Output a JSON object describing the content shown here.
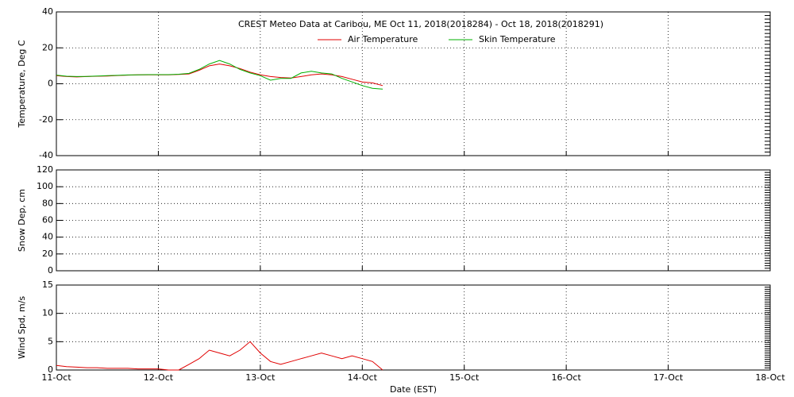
{
  "chart_data": [
    {
      "type": "line",
      "title": "CREST Meteo Data at Caribou, ME   Oct 11, 2018(2018284) - Oct 18, 2018(2018291)",
      "y_label": "Temperature, Deg C",
      "x": [
        0,
        0.1,
        0.2,
        0.3,
        0.4,
        0.5,
        0.6,
        0.7,
        0.8,
        0.9,
        1.0,
        1.1,
        1.2,
        1.3,
        1.4,
        1.5,
        1.6,
        1.7,
        1.8,
        1.9,
        2.0,
        2.1,
        2.2,
        2.3,
        2.4,
        2.5,
        2.6,
        2.7,
        2.8,
        2.9,
        3.0,
        3.1,
        3.2
      ],
      "series": [
        {
          "name": "Air Temperature",
          "color": "#e00000",
          "values": [
            4.5,
            4,
            3.8,
            4,
            4.2,
            4.3,
            4.6,
            4.8,
            5,
            5,
            5,
            5,
            5.2,
            5.5,
            7.5,
            10,
            11,
            10,
            8.5,
            6.5,
            5,
            4,
            3.5,
            3.2,
            4,
            5,
            5.5,
            5,
            4,
            2.5,
            1,
            0.5,
            -1
          ]
        },
        {
          "name": "Skin Temperature",
          "color": "#00b000",
          "values": [
            4.8,
            4.2,
            4,
            4.1,
            4.3,
            4.5,
            4.7,
            4.9,
            5,
            5.1,
            5.1,
            5.1,
            5.3,
            5.8,
            8,
            11,
            13,
            11,
            8,
            6,
            4.5,
            2,
            3,
            3,
            6,
            7,
            6,
            5.5,
            3,
            1,
            -1,
            -2.5,
            -3
          ]
        }
      ],
      "ylim": [
        -40,
        40
      ],
      "yticks": [
        -40,
        -20,
        0,
        20,
        40
      ],
      "grid": true,
      "legend": "top"
    },
    {
      "type": "line",
      "y_label": "Snow Dep, cm",
      "series": [],
      "ylim": [
        0,
        120
      ],
      "yticks": [
        0,
        20,
        40,
        60,
        80,
        100,
        120
      ],
      "grid": true
    },
    {
      "type": "line",
      "y_label": "Wind Spd, m/s",
      "x_label": "Date (EST)",
      "x": [
        0,
        0.1,
        0.2,
        0.3,
        0.4,
        0.5,
        0.6,
        0.7,
        0.8,
        0.9,
        1.0,
        1.1,
        1.2,
        1.3,
        1.4,
        1.5,
        1.6,
        1.7,
        1.8,
        1.9,
        2.0,
        2.1,
        2.2,
        2.3,
        2.4,
        2.5,
        2.6,
        2.7,
        2.8,
        2.9,
        3.0,
        3.1,
        3.2
      ],
      "series": [
        {
          "name": "Wind Speed",
          "color": "#e00000",
          "values": [
            0.8,
            0.6,
            0.5,
            0.4,
            0.4,
            0.3,
            0.3,
            0.3,
            0.2,
            0.2,
            0.2,
            0,
            0,
            1,
            2,
            3.5,
            3,
            2.5,
            3.5,
            5,
            3,
            1.5,
            1,
            1.5,
            2,
            2.5,
            3,
            2.5,
            2,
            2.5,
            2,
            1.5,
            0
          ]
        }
      ],
      "xlim": [
        0,
        7
      ],
      "xticks": [
        {
          "value": 0,
          "label": "11-Oct"
        },
        {
          "value": 1,
          "label": "12-Oct"
        },
        {
          "value": 2,
          "label": "13-Oct"
        },
        {
          "value": 3,
          "label": "14-Oct"
        },
        {
          "value": 4,
          "label": "15-Oct"
        },
        {
          "value": 5,
          "label": "16-Oct"
        },
        {
          "value": 6,
          "label": "17-Oct"
        },
        {
          "value": 7,
          "label": "18-Oct"
        }
      ],
      "ylim": [
        0,
        15
      ],
      "yticks": [
        0,
        5,
        10,
        15
      ],
      "grid": true
    }
  ]
}
